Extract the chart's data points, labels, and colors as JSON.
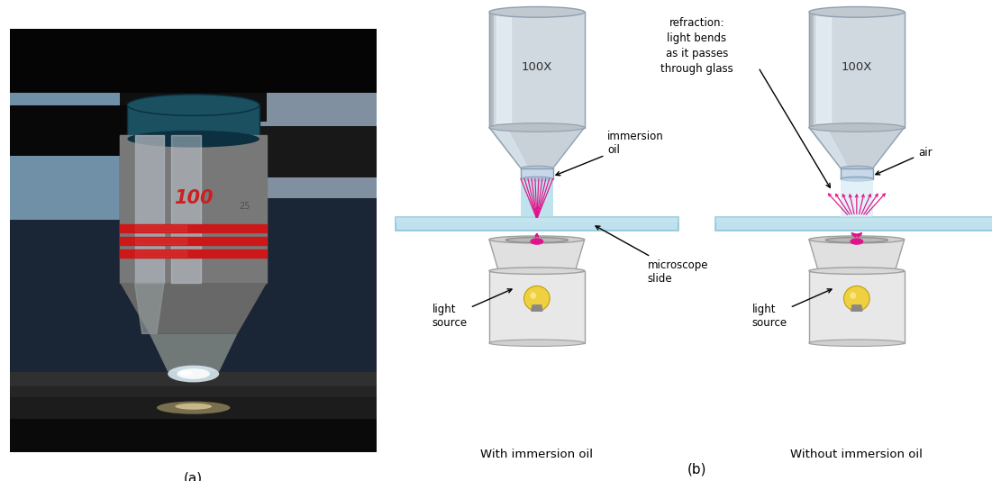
{
  "bg_color": "#ffffff",
  "photo_label": "(a)",
  "diagram_label": "(b)",
  "left_caption": "With immersion oil",
  "right_caption": "Without immersion oil",
  "lens_label": "100X",
  "refraction_text": "refraction:\nlight bends\nas it passes\nthrough glass",
  "immersion_oil_label": "immersion\noil",
  "air_label": "air",
  "microscope_slide_label": "microscope\nslide",
  "light_source_label": "light\nsource",
  "lens_body_color": "#d0d8e0",
  "lens_highlight_color": "#e8f0f8",
  "lens_tip_color": "#c0d0d8",
  "slide_color": "#a8d8e8",
  "slide_edge_color": "#70b8d0",
  "light_ray_color": "#e0148a",
  "condenser_color": "#e8e8e8",
  "oil_color": "#b8e4f0",
  "bulb_color": "#f0d040",
  "photo_bg_top": "#8ab0c8",
  "photo_bg_mid": "#1a2030",
  "photo_bg_bot": "#0a0a0a",
  "lens_metal_color": "#787878",
  "lens_metal_light": "#a0a8b0",
  "lens_metal_dark": "#404040",
  "red_ring_color": "#cc2020"
}
